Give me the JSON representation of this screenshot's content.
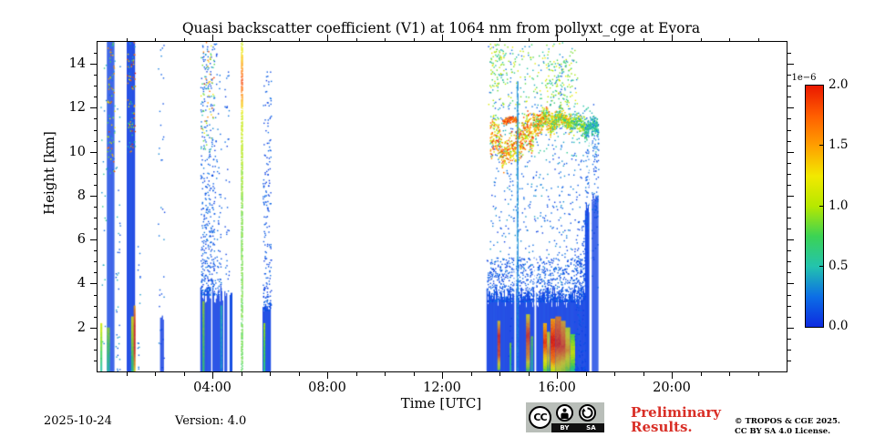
{
  "chart_data": {
    "type": "scatter",
    "title": "Quasi backscatter coefficient (V1) at 1064 nm from pollyxt_cge at Evora",
    "xlabel": "Time [UTC]",
    "ylabel": "Height [km]",
    "x_range_hours": [
      0,
      24
    ],
    "y_range_km": [
      0,
      15
    ],
    "x_major_ticks": [
      {
        "hour": 4,
        "label": "04:00"
      },
      {
        "hour": 8,
        "label": "08:00"
      },
      {
        "hour": 12,
        "label": "12:00"
      },
      {
        "hour": 16,
        "label": "16:00"
      },
      {
        "hour": 20,
        "label": "20:00"
      }
    ],
    "x_minor_step_hours": 1,
    "y_major_ticks": [
      2,
      4,
      6,
      8,
      10,
      12,
      14
    ],
    "y_minor_step_km": 0.5,
    "grid": false,
    "colorbar": {
      "scale_label": "1e−6",
      "min": 0.0,
      "max": 2.0,
      "tick_labels": [
        "2.0",
        "1.5",
        "1.0",
        "0.5",
        "0.0"
      ],
      "tick_values": [
        2.0,
        1.5,
        1.0,
        0.5,
        0.0
      ],
      "stops": [
        [
          0.0,
          "#0d2be0"
        ],
        [
          0.125,
          "#0c6ee6"
        ],
        [
          0.25,
          "#23c3ae"
        ],
        [
          0.375,
          "#3bd355"
        ],
        [
          0.5,
          "#b6e800"
        ],
        [
          0.625,
          "#f2e900"
        ],
        [
          0.75,
          "#ffa000"
        ],
        [
          0.875,
          "#ff5e00"
        ],
        [
          1.0,
          "#ea1800"
        ]
      ]
    },
    "features": [
      {
        "kind": "speckle",
        "t": [
          0.1,
          0.28
        ],
        "h": [
          0,
          15
        ],
        "d": 3.5,
        "v": [
          0.25,
          0.6
        ]
      },
      {
        "kind": "vline",
        "t": [
          0.1,
          0.15
        ],
        "h": [
          0,
          2.2
        ],
        "vstops": [
          [
            0,
            1.1
          ],
          [
            0.5,
            0.8
          ],
          [
            1,
            0.5
          ]
        ]
      },
      {
        "kind": "solid",
        "t": [
          0.33,
          0.57
        ],
        "h": [
          0,
          15
        ],
        "v": 0.07,
        "jag": 0
      },
      {
        "kind": "speckle",
        "t": [
          0.33,
          0.57
        ],
        "h": [
          9,
          15
        ],
        "d": 10,
        "v": [
          0.2,
          2.0
        ]
      },
      {
        "kind": "vline",
        "t": [
          0.33,
          0.4
        ],
        "h": [
          0,
          2.0
        ],
        "vstops": [
          [
            0,
            0.95
          ],
          [
            1,
            0.55
          ]
        ]
      },
      {
        "kind": "speckle",
        "t": [
          0.62,
          0.75
        ],
        "h": [
          0,
          15
        ],
        "d": 8,
        "v": [
          0.1,
          0.45
        ],
        "bias": "low"
      },
      {
        "kind": "solid",
        "t": [
          1.02,
          1.3
        ],
        "h": [
          0,
          15
        ],
        "v": 0.07,
        "jag": 0
      },
      {
        "kind": "speckle",
        "t": [
          1.02,
          1.3
        ],
        "h": [
          10,
          15
        ],
        "d": 9,
        "v": [
          0.2,
          2.0
        ]
      },
      {
        "kind": "vline",
        "t": [
          1.17,
          1.25
        ],
        "h": [
          0,
          2.5
        ],
        "vstops": [
          [
            0,
            1.2
          ],
          [
            0.4,
            1.0
          ],
          [
            1,
            0.6
          ]
        ]
      },
      {
        "kind": "vline",
        "t": [
          1.26,
          1.31
        ],
        "h": [
          0,
          3.0
        ],
        "vstops": [
          [
            0,
            1.5
          ],
          [
            0.3,
            1.95
          ],
          [
            0.7,
            1.9
          ],
          [
            1,
            1.2
          ]
        ]
      },
      {
        "kind": "speckle",
        "t": [
          1.38,
          1.46
        ],
        "h": [
          0,
          6
        ],
        "d": 5,
        "v": [
          0.1,
          0.4
        ],
        "bias": "low"
      },
      {
        "kind": "speckle",
        "t": [
          2.1,
          2.32
        ],
        "h": [
          0,
          15
        ],
        "d": 5,
        "v": [
          0.05,
          0.35
        ]
      },
      {
        "kind": "solid",
        "t": [
          2.18,
          2.3
        ],
        "h": [
          0,
          2.6
        ],
        "v": 0.07,
        "jag": 0.3
      },
      {
        "kind": "solid",
        "t": [
          3.58,
          4.35
        ],
        "h": [
          0,
          3.9
        ],
        "v": 0.07,
        "jag": 0.8
      },
      {
        "kind": "speckle",
        "t": [
          3.58,
          4.05
        ],
        "h": [
          3.5,
          15
        ],
        "d": 26,
        "v": [
          0.04,
          0.3
        ],
        "bias": "low"
      },
      {
        "kind": "speckle",
        "t": [
          3.58,
          4.05
        ],
        "h": [
          10,
          15
        ],
        "d": 5,
        "v": [
          0.3,
          2.0
        ]
      },
      {
        "kind": "speckle",
        "t": [
          4.05,
          4.28
        ],
        "h": [
          3.5,
          15
        ],
        "d": 10,
        "v": [
          0.05,
          0.3
        ],
        "bias": "low"
      },
      {
        "kind": "vline",
        "t": [
          3.66,
          3.72
        ],
        "h": [
          0,
          3.2
        ],
        "vstops": [
          [
            0,
            0.95
          ],
          [
            1,
            0.7
          ]
        ]
      },
      {
        "kind": "gap",
        "t": [
          3.96,
          4.0
        ],
        "h": [
          0,
          3.9
        ]
      },
      {
        "kind": "vline",
        "t": [
          4.28,
          4.33
        ],
        "h": [
          0,
          3.0
        ],
        "vstops": [
          [
            0,
            0.5
          ],
          [
            1,
            0.35
          ]
        ]
      },
      {
        "kind": "solid",
        "t": [
          4.42,
          4.5
        ],
        "h": [
          0,
          3.8
        ],
        "v": 0.07,
        "jag": 0.4
      },
      {
        "kind": "speckle",
        "t": [
          4.42,
          4.56
        ],
        "h": [
          3.5,
          14
        ],
        "d": 7,
        "v": [
          0.05,
          0.3
        ]
      },
      {
        "kind": "solid",
        "t": [
          4.6,
          4.68
        ],
        "h": [
          0,
          3.6
        ],
        "v": 0.1,
        "jag": 0.3
      },
      {
        "kind": "vline",
        "t": [
          5.0,
          5.05
        ],
        "h": [
          0,
          15
        ],
        "dotted": 0.75,
        "vstops": [
          [
            0,
            1.05
          ],
          [
            0.07,
            1.5
          ],
          [
            0.12,
            1.85
          ],
          [
            0.18,
            1.45
          ],
          [
            0.22,
            1.1
          ],
          [
            0.5,
            0.85
          ],
          [
            1,
            0.8
          ]
        ]
      },
      {
        "kind": "solid",
        "t": [
          5.75,
          6.02
        ],
        "h": [
          0,
          3.2
        ],
        "v": 0.07,
        "jag": 0.5
      },
      {
        "kind": "speckle",
        "t": [
          5.75,
          6.02
        ],
        "h": [
          2.8,
          13.8
        ],
        "d": 22,
        "v": [
          0.04,
          0.25
        ],
        "bias": "low"
      },
      {
        "kind": "vline",
        "t": [
          5.78,
          5.83
        ],
        "h": [
          0,
          2.2
        ],
        "vstops": [
          [
            0,
            0.95
          ],
          [
            1,
            0.6
          ]
        ]
      },
      {
        "kind": "speckle",
        "t": [
          13.6,
          16.7
        ],
        "h": [
          12.1,
          15
        ],
        "d": 2.2,
        "v": [
          0.15,
          1.25
        ]
      },
      {
        "kind": "speckle",
        "t": [
          13.65,
          14.15
        ],
        "h": [
          12.8,
          15
        ],
        "d": 4,
        "v": [
          0.4,
          1.3
        ]
      },
      {
        "kind": "speckle",
        "t": [
          15.6,
          16.5
        ],
        "h": [
          12.1,
          14.2
        ],
        "d": 3,
        "v": [
          0.3,
          1.2
        ]
      },
      {
        "kind": "speckle",
        "t": [
          13.65,
          17.4
        ],
        "h": [
          3.8,
          10.0
        ],
        "d": 3.2,
        "v": [
          0.04,
          0.4
        ]
      },
      {
        "kind": "speckle",
        "t": [
          13.65,
          17.4
        ],
        "h": [
          9.8,
          12.2
        ],
        "d": 1.6,
        "v": [
          0.1,
          0.6
        ]
      },
      {
        "kind": "speckle",
        "t": [
          14.3,
          14.4
        ],
        "h": [
          0,
          15
        ],
        "d": 7,
        "v": [
          0.08,
          0.35
        ]
      },
      {
        "kind": "speckle",
        "t": [
          16.05,
          16.15
        ],
        "h": [
          4,
          15
        ],
        "d": 6,
        "v": [
          0.08,
          0.35
        ]
      },
      {
        "kind": "layer",
        "segments": [
          {
            "t": [
              13.65,
              14.05
            ],
            "hc": 10.7,
            "hw": 1.0,
            "d": 9,
            "v": [
              0.7,
              2.0
            ]
          },
          {
            "t": [
              14.05,
              14.55
            ],
            "hc": 10.0,
            "hw": 0.75,
            "d": 8,
            "v": [
              0.9,
              2.0
            ]
          },
          {
            "t": [
              14.1,
              14.6
            ],
            "hc": 11.45,
            "hw": 0.18,
            "d": 5,
            "v": [
              1.5,
              2.0
            ]
          },
          {
            "t": [
              14.55,
              15.15
            ],
            "hc": 10.8,
            "hw": 0.95,
            "d": 11,
            "v": [
              0.8,
              2.0
            ]
          },
          {
            "t": [
              15.15,
              15.8
            ],
            "hc": 11.4,
            "hw": 0.55,
            "d": 12,
            "v": [
              0.6,
              1.9
            ]
          },
          {
            "t": [
              15.8,
              16.45
            ],
            "hc": 11.5,
            "hw": 0.5,
            "d": 12,
            "v": [
              0.45,
              1.7
            ]
          },
          {
            "t": [
              16.45,
              16.95
            ],
            "hc": 11.3,
            "hw": 0.5,
            "d": 10,
            "v": [
              0.3,
              1.3
            ]
          },
          {
            "t": [
              16.95,
              17.4
            ],
            "hc": 11.1,
            "hw": 0.45,
            "d": 12,
            "v": [
              0.25,
              0.75
            ]
          }
        ]
      },
      {
        "kind": "solid",
        "t": [
          13.55,
          16.95
        ],
        "h": [
          0,
          3.9
        ],
        "v": 0.07,
        "jag": 1.0
      },
      {
        "kind": "speckle",
        "t": [
          13.55,
          16.95
        ],
        "h": [
          3.2,
          5.2
        ],
        "d": 9,
        "v": [
          0.05,
          0.25
        ],
        "bias": "low"
      },
      {
        "kind": "vline",
        "t": [
          13.93,
          14.02
        ],
        "h": [
          0.1,
          2.3
        ],
        "vstops": [
          [
            0,
            1.3
          ],
          [
            0.3,
            1.95
          ],
          [
            0.7,
            1.8
          ],
          [
            1,
            0.9
          ]
        ]
      },
      {
        "kind": "vline",
        "t": [
          14.35,
          14.4
        ],
        "h": [
          0,
          1.3
        ],
        "vstops": [
          [
            0,
            0.9
          ],
          [
            1,
            0.5
          ]
        ]
      },
      {
        "kind": "vline",
        "t": [
          14.93,
          15.05
        ],
        "h": [
          0,
          2.6
        ],
        "vstops": [
          [
            0,
            1.2
          ],
          [
            0.35,
            1.9
          ],
          [
            0.75,
            1.5
          ],
          [
            1,
            0.7
          ]
        ]
      },
      {
        "kind": "vline",
        "t": [
          15.1,
          15.14
        ],
        "h": [
          0,
          1.6
        ],
        "vstops": [
          [
            0,
            0.85
          ],
          [
            1,
            0.5
          ]
        ]
      },
      {
        "kind": "vline",
        "t": [
          15.52,
          15.62
        ],
        "h": [
          0,
          2.2
        ],
        "vstops": [
          [
            0,
            1.4
          ],
          [
            0.4,
            1.9
          ],
          [
            1,
            0.8
          ]
        ]
      },
      {
        "kind": "vline",
        "t": [
          15.66,
          15.75
        ],
        "h": [
          0,
          1.8
        ],
        "vstops": [
          [
            0,
            1.1
          ],
          [
            0.5,
            1.5
          ],
          [
            1,
            0.7
          ]
        ]
      },
      {
        "kind": "vline",
        "t": [
          15.78,
          15.92
        ],
        "h": [
          0,
          2.4
        ],
        "vstops": [
          [
            0,
            1.5
          ],
          [
            0.4,
            2.0
          ],
          [
            0.8,
            1.6
          ],
          [
            1,
            1.0
          ]
        ]
      },
      {
        "kind": "vline",
        "t": [
          15.95,
          16.12
        ],
        "h": [
          0,
          2.5
        ],
        "vstops": [
          [
            0,
            1.6
          ],
          [
            0.5,
            1.95
          ],
          [
            1,
            1.1
          ]
        ]
      },
      {
        "kind": "vline",
        "t": [
          16.14,
          16.28
        ],
        "h": [
          0,
          2.3
        ],
        "vstops": [
          [
            0,
            1.4
          ],
          [
            0.5,
            1.85
          ],
          [
            1,
            0.95
          ]
        ]
      },
      {
        "kind": "vline",
        "t": [
          16.3,
          16.45
        ],
        "h": [
          0,
          2.0
        ],
        "vstops": [
          [
            0,
            1.1
          ],
          [
            0.5,
            1.5
          ],
          [
            1,
            0.8
          ]
        ]
      },
      {
        "kind": "vline",
        "t": [
          16.47,
          16.6
        ],
        "h": [
          0,
          1.7
        ],
        "vstops": [
          [
            0,
            0.8
          ],
          [
            0.5,
            1.1
          ],
          [
            1,
            0.6
          ]
        ]
      },
      {
        "kind": "gap",
        "t": [
          14.52,
          14.58
        ],
        "h": [
          0,
          5.2
        ]
      },
      {
        "kind": "vline",
        "t": [
          14.6,
          14.66
        ],
        "h": [
          0,
          13.2
        ],
        "dotted": 0.85,
        "vstops": [
          [
            0,
            0.35
          ],
          [
            1,
            0.3
          ]
        ]
      },
      {
        "kind": "gap",
        "t": [
          15.22,
          15.28
        ],
        "h": [
          0,
          5.2
        ]
      },
      {
        "kind": "speckle",
        "t": [
          16.6,
          16.95
        ],
        "h": [
          0,
          7
        ],
        "d": 14,
        "v": [
          0.05,
          0.2
        ],
        "bias": "low"
      },
      {
        "kind": "solid",
        "t": [
          16.98,
          17.12
        ],
        "h": [
          0,
          7.8
        ],
        "v": 0.08,
        "jag": 0.6
      },
      {
        "kind": "speckle",
        "t": [
          16.98,
          17.12
        ],
        "h": [
          6,
          10.5
        ],
        "d": 8,
        "v": [
          0.06,
          0.3
        ]
      },
      {
        "kind": "gap",
        "t": [
          17.13,
          17.2
        ],
        "h": [
          0,
          11
        ]
      },
      {
        "kind": "solid",
        "t": [
          17.22,
          17.42
        ],
        "h": [
          0,
          8.2
        ],
        "v": 0.08,
        "jag": 0.6
      },
      {
        "kind": "speckle",
        "t": [
          17.22,
          17.42
        ],
        "h": [
          7,
          10.8
        ],
        "d": 8,
        "v": [
          0.06,
          0.3
        ]
      }
    ]
  },
  "footer": {
    "date": "2025-10-24",
    "version": "Version: 4.0",
    "preliminary_line1": "Preliminary",
    "preliminary_line2": "Results.",
    "preliminary_color": "#d92f27",
    "copyright_line1": "© TROPOS & CGE 2025.",
    "copyright_line2": "CC BY SA 4.0 License.",
    "license_badge": {
      "cc": "CC",
      "by": "BY",
      "sa": "SA"
    }
  }
}
